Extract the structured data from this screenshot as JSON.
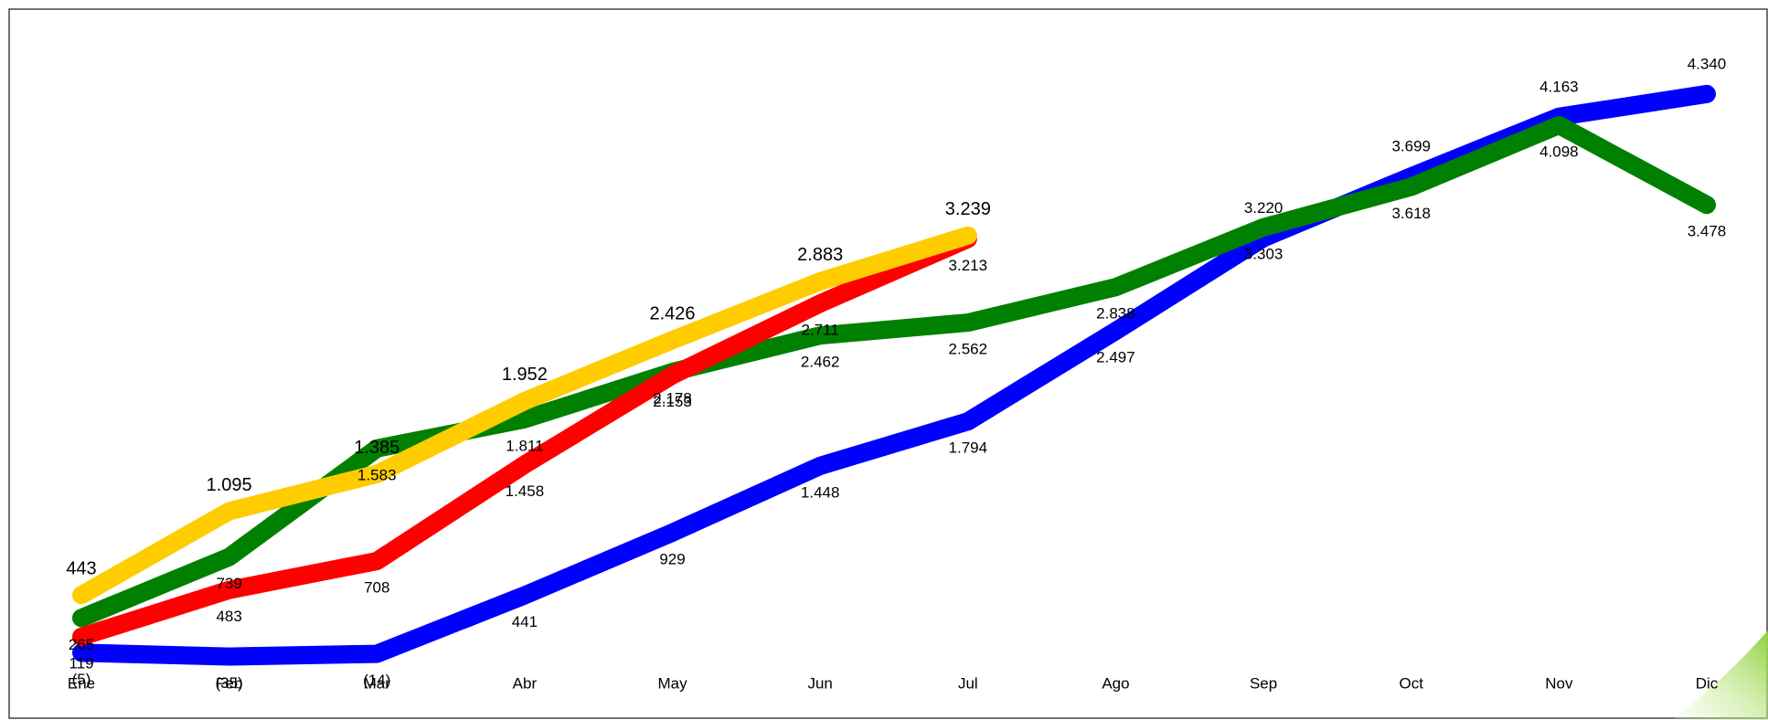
{
  "chart_data": {
    "type": "line",
    "categories": [
      "Ene",
      "Feb",
      "Mar",
      "Abr",
      "May",
      "Jun",
      "Jul",
      "Ago",
      "Sep",
      "Oct",
      "Nov",
      "Dic"
    ],
    "ylim": [
      -500,
      5000
    ],
    "series": [
      {
        "color": "#0000ff",
        "values": [
          -5,
          -35,
          -14,
          441,
          929,
          1448,
          1794,
          2497,
          3220,
          3699,
          4163,
          4340
        ],
        "value_labels": [
          "(5)",
          "(35)",
          "(14)",
          "441",
          "929",
          "1.448",
          "1.794",
          "2.497",
          "3.220",
          "3.699",
          "4.163",
          "4.340"
        ]
      },
      {
        "color": "#008000",
        "values": [
          265,
          739,
          1583,
          1811,
          2178,
          2462,
          2562,
          2838,
          3303,
          3618,
          4098,
          3478
        ],
        "value_labels": [
          "265",
          "739",
          "1.583",
          "1.811",
          "2.178",
          "2.462",
          "2.562",
          "2.838",
          "3.303",
          "3.618",
          "4.098",
          "3.478"
        ]
      },
      {
        "color": "#ff0000",
        "values": [
          119,
          483,
          708,
          1458,
          2153,
          2711,
          3213,
          null,
          null,
          null,
          null,
          null
        ],
        "value_labels": [
          "119",
          "483",
          "708",
          "1.458",
          "2.153",
          "2.711",
          "3.213",
          null,
          null,
          null,
          null,
          null
        ]
      },
      {
        "color": "#ffcc00",
        "values": [
          443,
          1095,
          1385,
          1952,
          2426,
          2883,
          3239,
          null,
          null,
          null,
          null,
          null
        ],
        "value_labels": [
          "443",
          "1.095",
          "1.385",
          "1.952",
          "2.426",
          "2.883",
          "3.239",
          null,
          null,
          null,
          null,
          null
        ]
      }
    ]
  }
}
